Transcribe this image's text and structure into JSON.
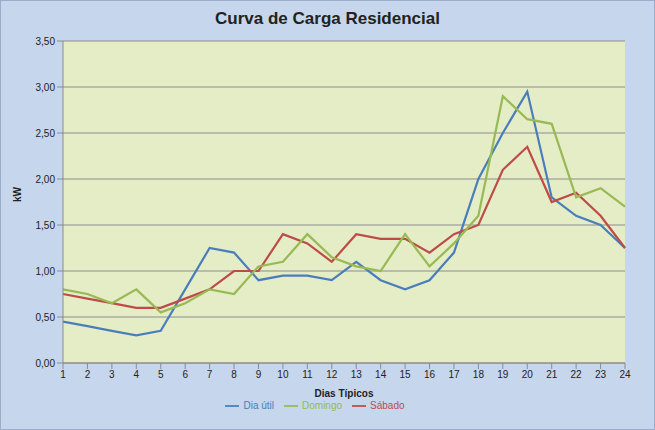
{
  "chart_data": {
    "type": "line",
    "title": "Curva de Carga Residencial",
    "x_label": "Dias Típicos",
    "y_label": "kW",
    "categories": [
      "1",
      "2",
      "3",
      "4",
      "5",
      "6",
      "7",
      "8",
      "9",
      "10",
      "11",
      "12",
      "13",
      "14",
      "15",
      "16",
      "17",
      "18",
      "19",
      "20",
      "21",
      "22",
      "23",
      "24"
    ],
    "series": [
      {
        "name": "Dia útil",
        "color": "#4a7ebb",
        "values": [
          0.45,
          0.4,
          0.35,
          0.3,
          0.35,
          0.8,
          1.25,
          1.2,
          0.9,
          0.95,
          0.95,
          0.9,
          1.1,
          0.9,
          0.8,
          0.9,
          1.2,
          2.0,
          2.5,
          2.95,
          1.8,
          1.6,
          1.5,
          1.25
        ]
      },
      {
        "name": "Sábado",
        "color": "#be4b48",
        "values": [
          0.75,
          0.7,
          0.65,
          0.6,
          0.6,
          0.7,
          0.8,
          1.0,
          1.0,
          1.4,
          1.3,
          1.1,
          1.4,
          1.35,
          1.35,
          1.2,
          1.4,
          1.5,
          2.1,
          2.35,
          1.75,
          1.85,
          1.6,
          1.25
        ]
      },
      {
        "name": "Domingo",
        "color": "#98b954",
        "values": [
          0.8,
          0.75,
          0.65,
          0.8,
          0.55,
          0.65,
          0.8,
          0.75,
          1.05,
          1.1,
          1.4,
          1.15,
          1.05,
          1.0,
          1.4,
          1.05,
          1.3,
          1.6,
          2.9,
          2.65,
          2.6,
          1.8,
          1.9,
          1.7
        ]
      }
    ],
    "ylim": [
      0,
      3.5
    ],
    "yticks": [
      {
        "value": 0,
        "label": "0,00"
      },
      {
        "value": 0.5,
        "label": "0,50"
      },
      {
        "value": 1,
        "label": "1,00"
      },
      {
        "value": 1.5,
        "label": "1,50"
      },
      {
        "value": 2,
        "label": "2,00"
      },
      {
        "value": 2.5,
        "label": "2,50"
      },
      {
        "value": 3,
        "label": "3,00"
      },
      {
        "value": 3.5,
        "label": "3,50"
      }
    ],
    "grid": true,
    "legend": "bottom"
  }
}
